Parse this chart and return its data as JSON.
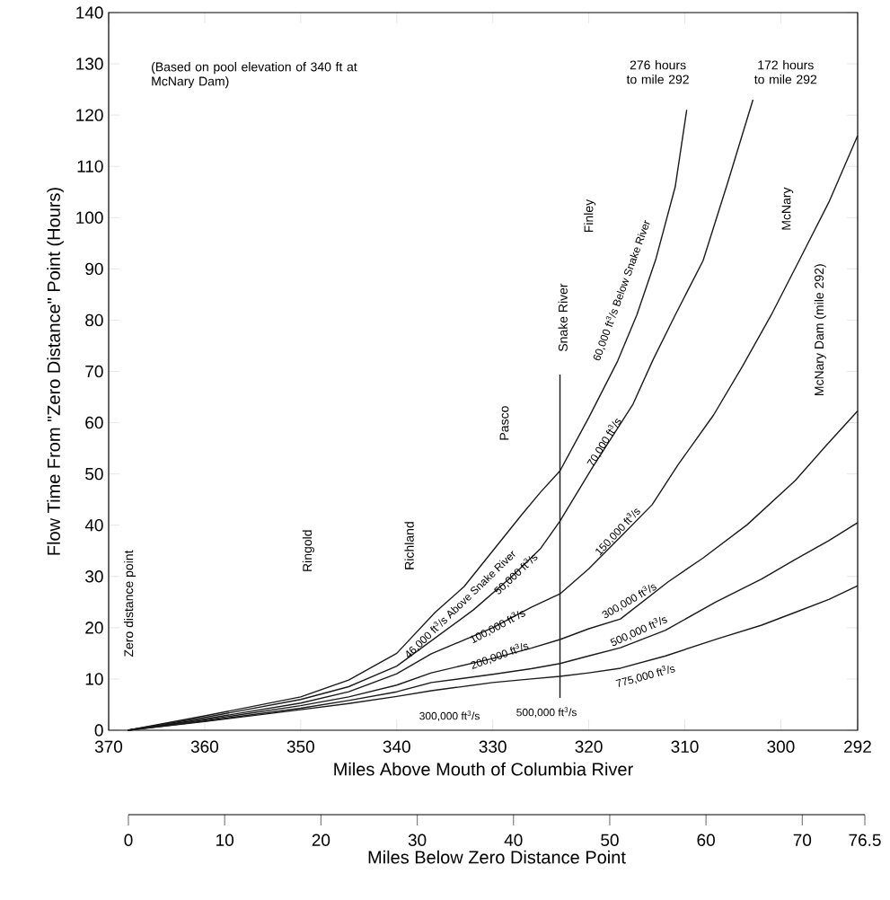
{
  "chart_data": {
    "type": "line",
    "xlabel": "Miles Above Mouth of Columbia River",
    "ylabel": "Flow Time From \"Zero Distance\" Point (Hours)",
    "x2label": "Miles Below Zero Distance Point",
    "xlim": [
      370,
      292
    ],
    "xticks": [
      370,
      360,
      350,
      340,
      330,
      320,
      310,
      300,
      292
    ],
    "ylim": [
      0,
      140
    ],
    "yticks": [
      0,
      10,
      20,
      30,
      40,
      50,
      60,
      70,
      80,
      90,
      100,
      110,
      120,
      130,
      140
    ],
    "x2lim": [
      0,
      76.5
    ],
    "x2ticks": [
      0,
      10,
      20,
      30,
      40,
      50,
      60,
      70,
      76.5
    ],
    "series": [
      {
        "color": "#1a1a1a",
        "x": [
          368,
          360,
          350,
          345,
          340,
          336,
          333,
          330,
          327,
          325,
          323,
          320,
          317,
          315,
          313,
          311,
          309.8
        ],
        "values": [
          0,
          2.8,
          6.5,
          9.8,
          15,
          23,
          28,
          35,
          42,
          46.5,
          50.6,
          61,
          72,
          81,
          92,
          106,
          121
        ]
      },
      {
        "color": "#1a1a1a",
        "x": [
          368,
          360,
          350,
          345,
          340,
          336,
          332,
          328,
          325,
          323,
          319.6,
          315.4,
          313.3,
          311,
          308.1,
          305.5,
          302.9
        ],
        "values": [
          0,
          2.5,
          6,
          8.5,
          12.5,
          18,
          23.5,
          30,
          35.5,
          40.8,
          51.3,
          63.6,
          72.3,
          81,
          91.6,
          107,
          123
        ]
      },
      {
        "color": "#1a1a1a",
        "x": [
          368,
          360,
          350,
          345,
          340,
          336.4,
          330,
          326,
          323,
          320,
          316.7,
          313.4,
          310.7,
          307,
          304,
          301,
          298.1,
          295,
          292
        ],
        "values": [
          0,
          2.2,
          5.3,
          7.5,
          11,
          14.9,
          20,
          24,
          26.6,
          31.5,
          37.7,
          44,
          51.8,
          61.5,
          71,
          81,
          91.6,
          103,
          116
        ]
      },
      {
        "color": "#1a1a1a",
        "x": [
          368,
          360,
          350,
          345,
          340,
          336.4,
          330,
          326,
          323,
          320,
          316.7,
          311.7,
          308.1,
          303.5,
          298.5,
          295.3,
          292
        ],
        "values": [
          0,
          2,
          4.8,
          6.5,
          8.8,
          11.2,
          14,
          16,
          17.7,
          19.8,
          21.7,
          29,
          33.6,
          40.1,
          48.7,
          55.5,
          62.3
        ]
      },
      {
        "color": "#1a1a1a",
        "x": [
          368,
          360,
          350,
          345,
          340,
          336.4,
          330,
          326,
          323,
          320,
          316.7,
          312,
          306.8,
          302,
          298.5,
          295,
          292
        ],
        "values": [
          0,
          1.8,
          4.3,
          5.8,
          7.5,
          9.3,
          10.9,
          12,
          13,
          14.5,
          16.1,
          19.5,
          25,
          29.5,
          33.3,
          37,
          40.5
        ]
      },
      {
        "color": "#1a1a1a",
        "x": [
          368,
          360,
          350,
          345,
          340,
          336.4,
          330,
          326,
          323,
          320,
          316.7,
          312,
          306.5,
          302,
          298.5,
          295,
          292
        ],
        "values": [
          0,
          1.7,
          4,
          5.2,
          6.6,
          7.7,
          9.3,
          10,
          10.5,
          11.2,
          12.1,
          14.5,
          17.9,
          20.5,
          23,
          25.5,
          28.2
        ]
      },
      {
        "color": "#1a1a1a",
        "x": [
          323,
          323
        ],
        "values": [
          6.3,
          69.4
        ]
      }
    ],
    "annotations": [
      "(Based on pool elevation of 340 ft at McNary Dam)",
      "276 hours to mile 292",
      "172 hours to mile 292",
      "Zero distance point",
      "Ringold",
      "Richland",
      "Pasco",
      "Snake River",
      "Finley",
      "McNary",
      "McNary Dam (mile 292)",
      "46,000 ft$^{3}$/s Above Snake River",
      {
        "text": "50,000 ft$^{3}$/s",
        "x": 327.6,
        "y": 30.5
      },
      {
        "text": "100,000 ft$^{3}$/s",
        "x": 329.5,
        "y": 20.3
      },
      {
        "text": "200,000 ft$^{3}$/s",
        "x": 329.3,
        "y": 14.6
      },
      "300,000 ft$^{3}$/s",
      "500,000 ft$^{3}$/s",
      "60,000 ft$^{3}$/s Below Snake River",
      {
        "text": "70,000 ft$^{3}$/s",
        "x": 318.4,
        "y": 56.2
      },
      "150,000 ft$^{3}$/s",
      "300,000 ft$^{3}$/s",
      "500,000 ft$^{3}$/s",
      "775,000 ft$^{3}$/s"
    ]
  }
}
